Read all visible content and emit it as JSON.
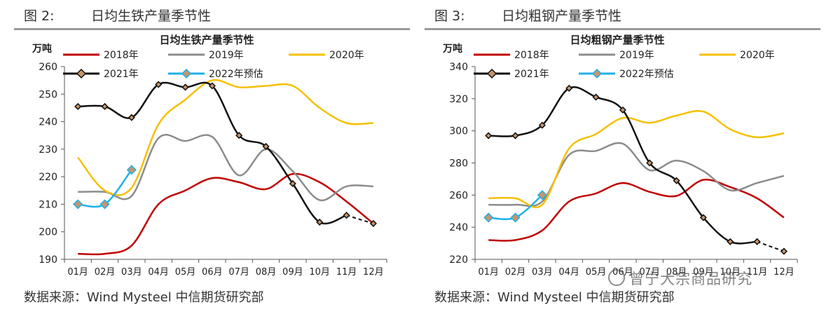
{
  "left": {
    "figure_label": "图 2:",
    "figure_title": "日均生铁产量季节性",
    "source": "数据来源：Wind Mysteel 中信期货研究部"
  },
  "right": {
    "figure_label": "图 3:",
    "figure_title": "日均粗钢产量季节性",
    "source": "数据来源：Wind Mysteel 中信期货研究部"
  },
  "watermark": "曾宁大宗商品研究",
  "colors": {
    "2018年": "#c00000",
    "2019年": "#8c8c8c",
    "2020年": "#f5c000",
    "2021年": "#111111",
    "2022年预估": "#1fb0e8",
    "marker": "#c8956a"
  },
  "chart_data": [
    {
      "type": "line",
      "title": "日均生铁产量季节性",
      "ylabel": "万吨",
      "ylim": [
        190,
        260
      ],
      "yticks": [
        190,
        200,
        210,
        220,
        230,
        240,
        250,
        260
      ],
      "categories": [
        "01月",
        "02月",
        "03月",
        "04月",
        "05月",
        "06月",
        "07月",
        "08月",
        "09月",
        "10月",
        "11月",
        "12月"
      ],
      "legend": "top",
      "series": [
        {
          "name": "2018年",
          "values": [
            192,
            192,
            195,
            210,
            215,
            219.5,
            218,
            215.5,
            221,
            218,
            211,
            203
          ]
        },
        {
          "name": "2019年",
          "values": [
            214.5,
            214.5,
            213,
            234,
            233,
            234.5,
            220.5,
            230,
            222,
            211.5,
            216.5,
            216.5
          ]
        },
        {
          "name": "2020年",
          "values": [
            227,
            215,
            216,
            239,
            248,
            255,
            252.5,
            253,
            253,
            245,
            239.5,
            239.5
          ]
        },
        {
          "name": "2021年",
          "values": [
            245.5,
            245.5,
            241.5,
            253.5,
            252.5,
            253,
            235,
            231,
            217.5,
            203.5,
            206,
            203
          ],
          "markers": true,
          "dashed_from": 10
        },
        {
          "name": "2022年预估",
          "values": [
            210,
            210,
            222.5,
            null,
            null,
            null,
            null,
            null,
            null,
            null,
            null,
            null
          ],
          "markers": true
        }
      ]
    },
    {
      "type": "line",
      "title": "日均粗钢产量季节性",
      "ylabel": "万吨",
      "ylim": [
        220,
        340
      ],
      "yticks": [
        220,
        240,
        260,
        280,
        300,
        320,
        340
      ],
      "categories": [
        "01月",
        "02月",
        "03月",
        "04月",
        "05月",
        "06月",
        "07月",
        "08月",
        "09月",
        "10月",
        "11月",
        "12月"
      ],
      "legend": "top",
      "series": [
        {
          "name": "2018年",
          "values": [
            232,
            232,
            238,
            256,
            261,
            267.5,
            262,
            259.5,
            269.5,
            265,
            258,
            246
          ]
        },
        {
          "name": "2019年",
          "values": [
            254,
            254,
            256,
            285,
            287.5,
            292,
            275.5,
            281.5,
            275,
            263,
            267.5,
            272
          ]
        },
        {
          "name": "2020年",
          "values": [
            258,
            258,
            254,
            289,
            298,
            308,
            305,
            309.5,
            312,
            301,
            296,
            298.5
          ]
        },
        {
          "name": "2021年",
          "values": [
            297,
            297,
            303.5,
            326.5,
            321,
            313,
            280,
            269,
            246,
            231,
            231,
            225
          ],
          "markers": true,
          "dashed_from": 10
        },
        {
          "name": "2022年预估",
          "values": [
            246,
            246,
            260,
            null,
            null,
            null,
            null,
            null,
            null,
            null,
            null,
            null
          ],
          "markers": true
        }
      ]
    }
  ]
}
